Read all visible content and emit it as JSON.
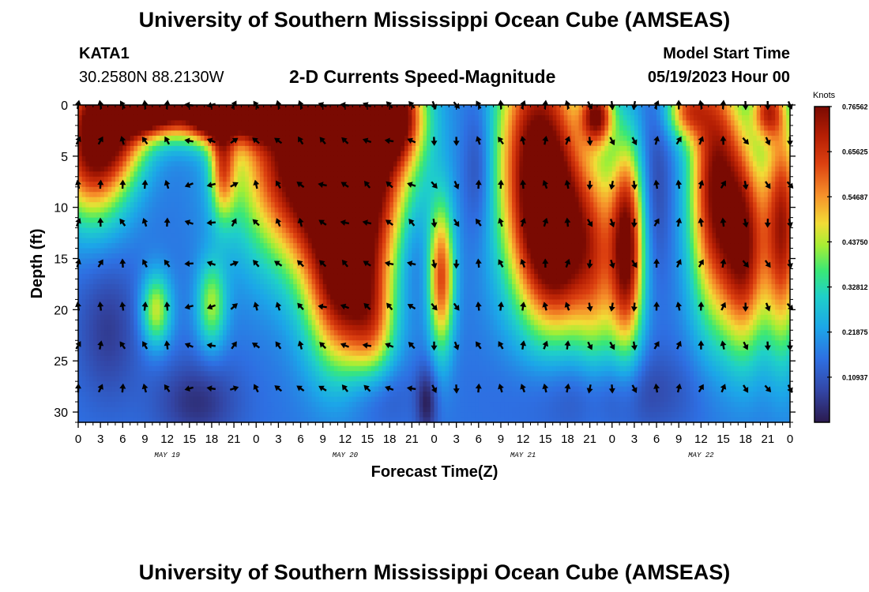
{
  "header": {
    "title": "University of Southern Mississippi Ocean Cube (AMSEAS)",
    "station_id": "KATA1",
    "station_coords": "30.2580N  88.2130W",
    "subtitle": "2-D Currents Speed-Magnitude",
    "model_start_label": "Model Start Time",
    "model_start_value": "05/19/2023 Hour 00"
  },
  "footer": {
    "title": "University of Southern Mississippi Ocean Cube (AMSEAS)"
  },
  "chart_data": {
    "type": "heatmap",
    "title": "2-D Currents Speed-Magnitude",
    "xlabel": "Forecast Time(Z)",
    "ylabel": "Depth (ft)",
    "xlim": [
      0,
      96
    ],
    "ylim": [
      0,
      31
    ],
    "y_inverted": true,
    "x_ticks": [
      0,
      3,
      6,
      9,
      12,
      15,
      18,
      21,
      24,
      27,
      30,
      33,
      36,
      39,
      42,
      45,
      48,
      51,
      54,
      57,
      60,
      63,
      66,
      69,
      72,
      75,
      78,
      81,
      84,
      87,
      90,
      93,
      96
    ],
    "x_tick_labels": [
      "0",
      "3",
      "6",
      "9",
      "12",
      "15",
      "18",
      "21",
      "0",
      "3",
      "6",
      "9",
      "12",
      "15",
      "18",
      "21",
      "0",
      "3",
      "6",
      "9",
      "12",
      "15",
      "18",
      "21",
      "0",
      "3",
      "6",
      "9",
      "12",
      "15",
      "18",
      "21",
      "0"
    ],
    "date_labels": [
      {
        "hour": 12,
        "label": "MAY 19"
      },
      {
        "hour": 36,
        "label": "MAY 20"
      },
      {
        "hour": 60,
        "label": "MAY 21"
      },
      {
        "hour": 84,
        "label": "MAY 22"
      }
    ],
    "y_ticks": [
      0,
      5,
      10,
      15,
      20,
      25,
      30
    ],
    "y_tick_labels": [
      "0",
      "5",
      "10",
      "15",
      "20",
      "25",
      "30"
    ],
    "colorbar": {
      "unit": "Knots",
      "min": 0.0,
      "max": 0.76562,
      "tick_values": [
        0.76562,
        0.65625,
        0.54687,
        0.4375,
        0.32812,
        0.21875,
        0.10937
      ],
      "tick_labels": [
        "0.76562",
        "0.65625",
        "0.54687",
        "0.43750",
        "0.32812",
        "0.21875",
        "0.10937"
      ]
    },
    "arrow_depths_ft": [
      0,
      3.5,
      7.8,
      11.5,
      15.5,
      19.7,
      23.5,
      27.7
    ],
    "arrow_hours": [
      0,
      3,
      6,
      9,
      12,
      15,
      18,
      21,
      24,
      27,
      30,
      33,
      36,
      39,
      42,
      45,
      48,
      51,
      54,
      57,
      60,
      63,
      66,
      69,
      72,
      75,
      78,
      81,
      84,
      87,
      90,
      93,
      96
    ],
    "speed_model": {
      "description": "Approximate speed field (knots) read from the image: a base level plus 2-D Gaussian blobs; values are clamped to [0, 0.76562].",
      "base": 0.16,
      "blobs": [
        {
          "t": 2,
          "d": 4,
          "st": 3.5,
          "sd": 5,
          "a": 0.6
        },
        {
          "t": 8,
          "d": 0,
          "st": 3,
          "sd": 1.5,
          "a": 0.5
        },
        {
          "t": 13,
          "d": 0.5,
          "st": 6,
          "sd": 2,
          "a": 0.55
        },
        {
          "t": 18,
          "d": 0.5,
          "st": 2,
          "sd": 2,
          "a": 0.5
        },
        {
          "t": 24,
          "d": 0.5,
          "st": 2.5,
          "sd": 2,
          "a": 0.5
        },
        {
          "t": 6,
          "d": 3,
          "st": 3,
          "sd": 3,
          "a": 0.22
        },
        {
          "t": 10.5,
          "d": 20,
          "st": 1.4,
          "sd": 2.5,
          "a": 0.3
        },
        {
          "t": 18,
          "d": 19.5,
          "st": 1.4,
          "sd": 3,
          "a": 0.26
        },
        {
          "t": 19.5,
          "d": 6,
          "st": 1.2,
          "sd": 3.5,
          "a": 0.35
        },
        {
          "t": 4,
          "d": 22,
          "st": 3,
          "sd": 5,
          "a": -0.1
        },
        {
          "t": 16,
          "d": 29,
          "st": 4,
          "sd": 3,
          "a": -0.12
        },
        {
          "t": 30,
          "d": 5,
          "st": 6,
          "sd": 7,
          "a": 0.62
        },
        {
          "t": 38,
          "d": 5,
          "st": 5,
          "sd": 8,
          "a": 0.6
        },
        {
          "t": 36,
          "d": 18,
          "st": 3.5,
          "sd": 6,
          "a": 0.5
        },
        {
          "t": 42,
          "d": 1,
          "st": 3,
          "sd": 3,
          "a": 0.5
        },
        {
          "t": 40,
          "d": 22,
          "st": 2,
          "sd": 4,
          "a": 0.2
        },
        {
          "t": 49,
          "d": 17,
          "st": 1.2,
          "sd": 5,
          "a": 0.45
        },
        {
          "t": 45,
          "d": 14,
          "st": 1.5,
          "sd": 4,
          "a": -0.08
        },
        {
          "t": 40,
          "d": 28,
          "st": 3,
          "sd": 2.5,
          "a": -0.1
        },
        {
          "t": 47,
          "d": 29,
          "st": 1,
          "sd": 2.5,
          "a": -0.15
        },
        {
          "t": 54,
          "d": 6,
          "st": 1.5,
          "sd": 5,
          "a": -0.12
        },
        {
          "t": 62,
          "d": 5,
          "st": 4,
          "sd": 9,
          "a": 0.62
        },
        {
          "t": 65,
          "d": 14,
          "st": 3.5,
          "sd": 6,
          "a": 0.5
        },
        {
          "t": 70,
          "d": 1,
          "st": 1.5,
          "sd": 2,
          "a": 0.5
        },
        {
          "t": 74,
          "d": 14,
          "st": 1.6,
          "sd": 7,
          "a": 0.62
        },
        {
          "t": 70,
          "d": 16,
          "st": 2,
          "sd": 8,
          "a": 0.25
        },
        {
          "t": 82,
          "d": 0.5,
          "st": 2,
          "sd": 2,
          "a": 0.35
        },
        {
          "t": 86,
          "d": 8,
          "st": 2.5,
          "sd": 9,
          "a": 0.6
        },
        {
          "t": 90,
          "d": 14,
          "st": 2,
          "sd": 7,
          "a": 0.5
        },
        {
          "t": 95,
          "d": 12,
          "st": 1.8,
          "sd": 8,
          "a": 0.55
        },
        {
          "t": 93,
          "d": 0.5,
          "st": 1.5,
          "sd": 2,
          "a": 0.4
        },
        {
          "t": 78,
          "d": 8,
          "st": 1.5,
          "sd": 6,
          "a": -0.08
        },
        {
          "t": 72,
          "d": 28,
          "st": 8,
          "sd": 3,
          "a": -0.1
        }
      ]
    },
    "direction_model": {
      "description": "Approximate flow direction (compass degrees, 0 = up/north, 180 = down/south) per forecast-hour segment, read from arrow glyphs.",
      "segments": [
        {
          "from": 0,
          "to": 4,
          "deg": 10
        },
        {
          "from": 4,
          "to": 12,
          "deg": 345
        },
        {
          "from": 12,
          "to": 18,
          "deg": 270
        },
        {
          "from": 18,
          "to": 22,
          "deg": 50
        },
        {
          "from": 22,
          "to": 30,
          "deg": 325
        },
        {
          "from": 30,
          "to": 45,
          "deg": 300
        },
        {
          "from": 45,
          "to": 52,
          "deg": 160
        },
        {
          "from": 52,
          "to": 57,
          "deg": 345
        },
        {
          "from": 57,
          "to": 66,
          "deg": 0
        },
        {
          "from": 66,
          "to": 76,
          "deg": 170
        },
        {
          "from": 76,
          "to": 88,
          "deg": 10
        },
        {
          "from": 88,
          "to": 96,
          "deg": 160
        }
      ]
    }
  }
}
